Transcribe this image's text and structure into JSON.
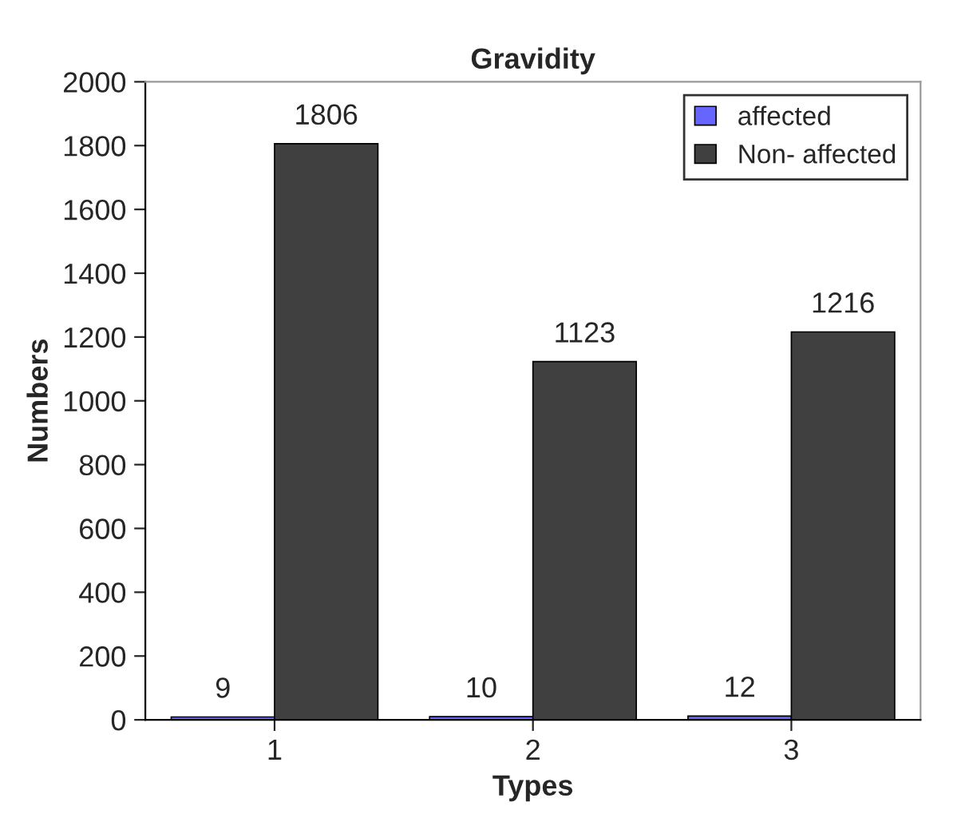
{
  "chart_data": {
    "type": "bar",
    "title": "Gravidity",
    "xlabel": "Types",
    "ylabel": "Numbers",
    "categories": [
      "1",
      "2",
      "3"
    ],
    "series": [
      {
        "name": "affected",
        "color": "#6666ff",
        "values": [
          9,
          10,
          12
        ]
      },
      {
        "name": "Non- affected",
        "color": "#404040",
        "values": [
          1806,
          1123,
          1216
        ]
      }
    ],
    "ylim": [
      0,
      2000
    ],
    "yticks": [
      0,
      200,
      400,
      600,
      800,
      1000,
      1200,
      1400,
      1600,
      1800,
      2000
    ],
    "data_labels": true,
    "legend": "top right",
    "grid": false
  }
}
